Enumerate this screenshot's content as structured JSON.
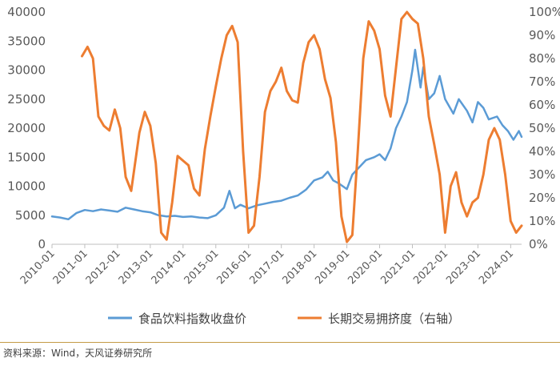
{
  "chart_data": {
    "type": "line",
    "title": "",
    "x_start": "2010-01",
    "x_end": "2024-05",
    "x_ticks": [
      "2010-01",
      "2011-01",
      "2012-01",
      "2013-01",
      "2014-01",
      "2015-01",
      "2016-01",
      "2017-01",
      "2018-01",
      "2019-01",
      "2020-01",
      "2021-01",
      "2022-01",
      "2023-01",
      "2024-01"
    ],
    "y_left": {
      "ticks": [
        "0",
        "5000",
        "10000",
        "15000",
        "20000",
        "25000",
        "30000",
        "35000",
        "40000"
      ],
      "ylim": [
        0,
        40000
      ]
    },
    "y_right": {
      "ticks": [
        "0%",
        "10%",
        "20%",
        "30%",
        "40%",
        "50%",
        "60%",
        "70%",
        "80%",
        "90%",
        "100%"
      ],
      "ylim": [
        0,
        100
      ]
    },
    "grid": false,
    "legend_position": "bottom",
    "series": [
      {
        "name": "食品饮料指数收盘价",
        "axis": "left",
        "color": "#5b9bd5",
        "points": [
          [
            "2010-01",
            4800
          ],
          [
            "2010-04",
            4600
          ],
          [
            "2010-07",
            4300
          ],
          [
            "2010-10",
            5400
          ],
          [
            "2011-01",
            5900
          ],
          [
            "2011-04",
            5700
          ],
          [
            "2011-07",
            6000
          ],
          [
            "2011-10",
            5800
          ],
          [
            "2012-01",
            5600
          ],
          [
            "2012-04",
            6300
          ],
          [
            "2012-07",
            6000
          ],
          [
            "2012-10",
            5700
          ],
          [
            "2013-01",
            5500
          ],
          [
            "2013-04",
            5000
          ],
          [
            "2013-07",
            4800
          ],
          [
            "2013-10",
            4900
          ],
          [
            "2014-01",
            4700
          ],
          [
            "2014-04",
            4800
          ],
          [
            "2014-07",
            4600
          ],
          [
            "2014-10",
            4500
          ],
          [
            "2015-01",
            5000
          ],
          [
            "2015-04",
            6300
          ],
          [
            "2015-06",
            9200
          ],
          [
            "2015-08",
            6200
          ],
          [
            "2015-10",
            6800
          ],
          [
            "2016-01",
            6200
          ],
          [
            "2016-04",
            6700
          ],
          [
            "2016-07",
            7000
          ],
          [
            "2016-10",
            7300
          ],
          [
            "2017-01",
            7500
          ],
          [
            "2017-04",
            8000
          ],
          [
            "2017-07",
            8400
          ],
          [
            "2017-10",
            9400
          ],
          [
            "2018-01",
            11000
          ],
          [
            "2018-04",
            11500
          ],
          [
            "2018-06",
            12500
          ],
          [
            "2018-08",
            11000
          ],
          [
            "2018-10",
            10500
          ],
          [
            "2019-01",
            9500
          ],
          [
            "2019-03",
            12000
          ],
          [
            "2019-05",
            13000
          ],
          [
            "2019-08",
            14500
          ],
          [
            "2019-11",
            15000
          ],
          [
            "2020-01",
            15500
          ],
          [
            "2020-03",
            14500
          ],
          [
            "2020-05",
            16500
          ],
          [
            "2020-07",
            20000
          ],
          [
            "2020-09",
            22000
          ],
          [
            "2020-11",
            24500
          ],
          [
            "2021-01",
            30000
          ],
          [
            "2021-02",
            33500
          ],
          [
            "2021-04",
            27000
          ],
          [
            "2021-05",
            30500
          ],
          [
            "2021-07",
            25000
          ],
          [
            "2021-09",
            26000
          ],
          [
            "2021-11",
            29000
          ],
          [
            "2022-01",
            25000
          ],
          [
            "2022-04",
            22500
          ],
          [
            "2022-06",
            25000
          ],
          [
            "2022-09",
            23000
          ],
          [
            "2022-11",
            21000
          ],
          [
            "2023-01",
            24500
          ],
          [
            "2023-03",
            23500
          ],
          [
            "2023-05",
            21500
          ],
          [
            "2023-08",
            22000
          ],
          [
            "2023-10",
            20500
          ],
          [
            "2023-12",
            19500
          ],
          [
            "2024-02",
            18000
          ],
          [
            "2024-04",
            19500
          ],
          [
            "2024-05",
            18500
          ]
        ]
      },
      {
        "name": "长期交易拥挤度（右轴）",
        "axis": "right",
        "color": "#ed7d31",
        "points": [
          [
            "2010-12",
            81
          ],
          [
            "2011-02",
            85
          ],
          [
            "2011-04",
            80
          ],
          [
            "2011-06",
            55
          ],
          [
            "2011-08",
            51
          ],
          [
            "2011-10",
            49
          ],
          [
            "2011-12",
            58
          ],
          [
            "2012-02",
            50
          ],
          [
            "2012-04",
            29
          ],
          [
            "2012-06",
            23
          ],
          [
            "2012-09",
            48
          ],
          [
            "2012-11",
            57
          ],
          [
            "2013-01",
            51
          ],
          [
            "2013-03",
            35
          ],
          [
            "2013-05",
            5
          ],
          [
            "2013-07",
            2
          ],
          [
            "2013-09",
            18
          ],
          [
            "2013-11",
            38
          ],
          [
            "2014-01",
            36
          ],
          [
            "2014-03",
            34
          ],
          [
            "2014-05",
            24
          ],
          [
            "2014-07",
            21
          ],
          [
            "2014-09",
            41
          ],
          [
            "2014-11",
            55
          ],
          [
            "2015-01",
            68
          ],
          [
            "2015-03",
            80
          ],
          [
            "2015-05",
            90
          ],
          [
            "2015-07",
            94
          ],
          [
            "2015-09",
            87
          ],
          [
            "2015-11",
            40
          ],
          [
            "2016-01",
            5
          ],
          [
            "2016-03",
            8
          ],
          [
            "2016-05",
            29
          ],
          [
            "2016-07",
            57
          ],
          [
            "2016-09",
            66
          ],
          [
            "2016-11",
            70
          ],
          [
            "2017-01",
            76
          ],
          [
            "2017-03",
            66
          ],
          [
            "2017-05",
            62
          ],
          [
            "2017-07",
            61
          ],
          [
            "2017-09",
            78
          ],
          [
            "2017-11",
            87
          ],
          [
            "2018-01",
            90
          ],
          [
            "2018-03",
            84
          ],
          [
            "2018-05",
            71
          ],
          [
            "2018-07",
            63
          ],
          [
            "2018-09",
            44
          ],
          [
            "2018-11",
            12
          ],
          [
            "2019-01",
            1
          ],
          [
            "2019-03",
            4
          ],
          [
            "2019-05",
            40
          ],
          [
            "2019-07",
            80
          ],
          [
            "2019-09",
            96
          ],
          [
            "2019-11",
            92
          ],
          [
            "2020-01",
            84
          ],
          [
            "2020-03",
            64
          ],
          [
            "2020-05",
            55
          ],
          [
            "2020-07",
            76
          ],
          [
            "2020-09",
            97
          ],
          [
            "2020-11",
            100
          ],
          [
            "2021-01",
            97
          ],
          [
            "2021-03",
            95
          ],
          [
            "2021-05",
            80
          ],
          [
            "2021-07",
            55
          ],
          [
            "2021-09",
            43
          ],
          [
            "2021-11",
            30
          ],
          [
            "2022-01",
            5
          ],
          [
            "2022-03",
            25
          ],
          [
            "2022-05",
            31
          ],
          [
            "2022-07",
            18
          ],
          [
            "2022-09",
            12
          ],
          [
            "2022-11",
            18
          ],
          [
            "2023-01",
            20
          ],
          [
            "2023-03",
            30
          ],
          [
            "2023-05",
            45
          ],
          [
            "2023-07",
            50
          ],
          [
            "2023-09",
            45
          ],
          [
            "2023-11",
            30
          ],
          [
            "2024-01",
            10
          ],
          [
            "2024-03",
            5
          ],
          [
            "2024-05",
            8
          ]
        ]
      }
    ],
    "source_text": "资料来源：Wind，天风证券研究所"
  }
}
